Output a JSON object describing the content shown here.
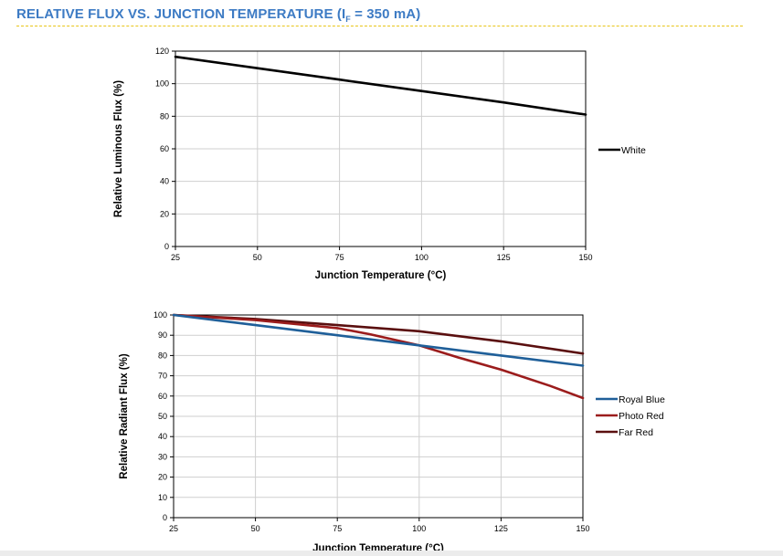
{
  "page": {
    "title_main": "RELATIVE FLUX VS. JUNCTION TEMPERATURE (I",
    "title_sub": "F",
    "title_end": " = 350 mA)",
    "accent_color": "#3d7bc4",
    "rule_color": "#e8c619"
  },
  "chart_data": [
    {
      "type": "line",
      "xlabel": "Junction Temperature (°C)",
      "ylabel": "Relative Luminous Flux (%)",
      "xlim": [
        25,
        150
      ],
      "ylim": [
        0,
        120
      ],
      "x_ticks": [
        25,
        50,
        75,
        100,
        125,
        150
      ],
      "y_ticks": [
        0,
        20,
        40,
        60,
        80,
        100,
        120
      ],
      "grid": true,
      "legend_position": "right",
      "series": [
        {
          "name": "White",
          "color": "#000000",
          "x": [
            25,
            50,
            75,
            100,
            125,
            150
          ],
          "y": [
            116.5,
            109.5,
            102.5,
            95.5,
            88.5,
            81
          ]
        }
      ]
    },
    {
      "type": "line",
      "xlabel": "Junction Temperature (°C)",
      "ylabel": "Relative Radiant Flux (%)",
      "xlim": [
        25,
        150
      ],
      "ylim": [
        0,
        100
      ],
      "x_ticks": [
        25,
        50,
        75,
        100,
        125,
        150
      ],
      "y_ticks": [
        0,
        10,
        20,
        30,
        40,
        50,
        60,
        70,
        80,
        90,
        100
      ],
      "grid": true,
      "legend_position": "right",
      "series": [
        {
          "name": "Royal Blue",
          "color": "#1f5f99",
          "x": [
            25,
            50,
            75,
            100,
            125,
            150
          ],
          "y": [
            100,
            95,
            90,
            85,
            80,
            75
          ]
        },
        {
          "name": "Photo Red",
          "color": "#9b1c1c",
          "x": [
            25,
            50,
            75,
            85,
            100,
            112,
            125,
            140,
            150
          ],
          "y": [
            100,
            97.5,
            93.5,
            90.5,
            85,
            79,
            73,
            65,
            59
          ]
        },
        {
          "name": "Far Red",
          "color": "#5a0f0f",
          "x": [
            25,
            50,
            75,
            100,
            125,
            150
          ],
          "y": [
            100,
            98,
            95,
            92,
            87,
            81
          ]
        }
      ]
    }
  ]
}
